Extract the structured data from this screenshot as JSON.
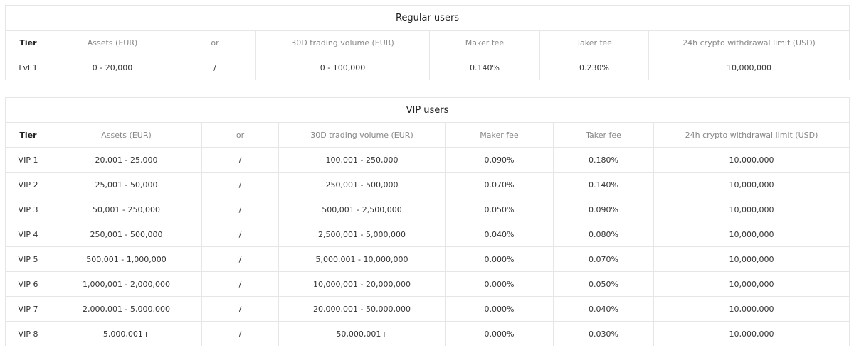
{
  "regular": {
    "title": "Regular users",
    "headers": [
      "Tier",
      "Assets (EUR)",
      "or",
      "30D trading volume (EUR)",
      "Maker fee",
      "Taker fee",
      "24h crypto withdrawal limit (USD)"
    ],
    "rows": [
      [
        "Lvl 1",
        "0 - 20,000",
        "/",
        "0 - 100,000",
        "0.140%",
        "0.230%",
        "10,000,000"
      ]
    ]
  },
  "vip": {
    "title": "VIP users",
    "headers": [
      "Tier",
      "Assets (EUR)",
      "or",
      "30D trading volume (EUR)",
      "Maker fee",
      "Taker fee",
      "24h crypto withdrawal limit (USD)"
    ],
    "rows": [
      [
        "VIP 1",
        "20,001 - 25,000",
        "/",
        "100,001 - 250,000",
        "0.090%",
        "0.180%",
        "10,000,000"
      ],
      [
        "VIP 2",
        "25,001 - 50,000",
        "/",
        "250,001 - 500,000",
        "0.070%",
        "0.140%",
        "10,000,000"
      ],
      [
        "VIP 3",
        "50,001 - 250,000",
        "/",
        "500,001 - 2,500,000",
        "0.050%",
        "0.090%",
        "10,000,000"
      ],
      [
        "VIP 4",
        "250,001 - 500,000",
        "/",
        "2,500,001 - 5,000,000",
        "0.040%",
        "0.080%",
        "10,000,000"
      ],
      [
        "VIP 5",
        "500,001 - 1,000,000",
        "/",
        "5,000,001 - 10,000,000",
        "0.000%",
        "0.070%",
        "10,000,000"
      ],
      [
        "VIP 6",
        "1,000,001 - 2,000,000",
        "/",
        "10,000,001 - 20,000,000",
        "0.000%",
        "0.050%",
        "10,000,000"
      ],
      [
        "VIP 7",
        "2,000,001 - 5,000,000",
        "/",
        "20,000,001 - 50,000,000",
        "0.000%",
        "0.040%",
        "10,000,000"
      ],
      [
        "VIP 8",
        "5,000,001+",
        "/",
        "50,000,001+",
        "0.000%",
        "0.030%",
        "10,000,000"
      ]
    ]
  }
}
